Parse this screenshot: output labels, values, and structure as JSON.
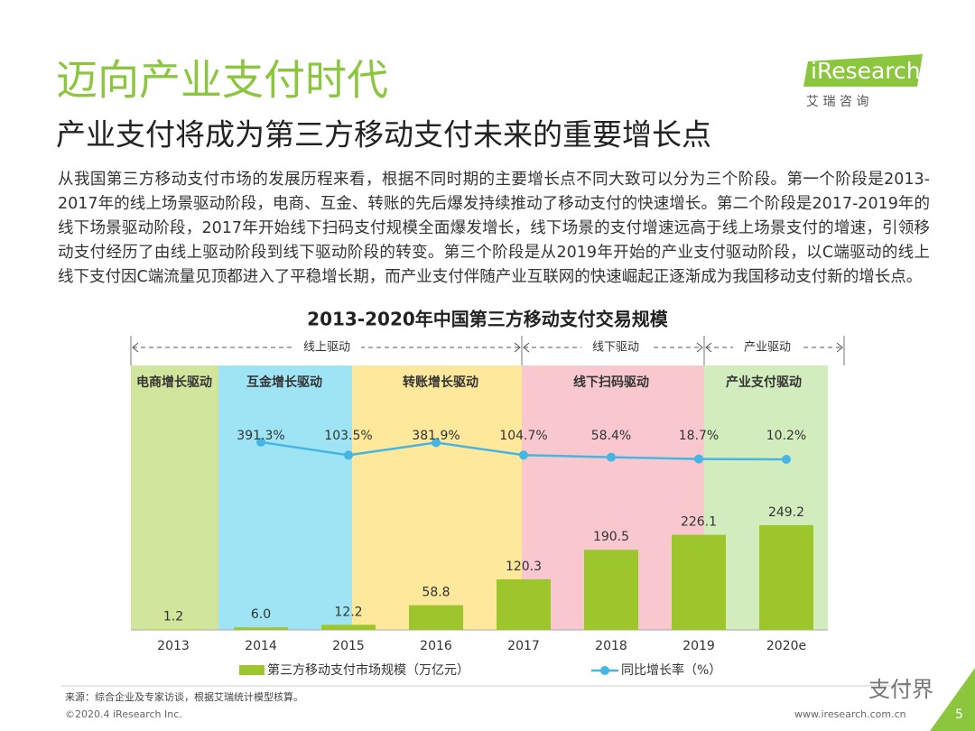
{
  "header": {
    "title": "迈向产业支付时代",
    "subtitle": "产业支付将成为第三方移动支付未来的重要增长点",
    "logo": "iResearch",
    "logo_sub": "艾 瑞 咨 询"
  },
  "body": {
    "paragraph": "从我国第三方移动支付市场的发展历程来看，根据不同时期的主要增长点不同大致可以分为三个阶段。第一个阶段是2013-2017年的线上场景驱动阶段，电商、互金、转账的先后爆发持续推动了移动支付的快速增长。第二个阶段是2017-2019年的线下场景驱动阶段，2017年开始线下扫码支付规模全面爆发增长，线下场景的支付增速远高于线上场景支付的增速，引领移动支付经历了由线上驱动阶段到线下驱动阶段的转变。第三个阶段是从2019年开始的产业支付驱动阶段，以C端驱动的线上线下支付因C端流量见顶都进入了平稳增长期，而产业支付伴随产业互联网的快速崛起正逐渐成为我国移动支付新的增长点。"
  },
  "chart_data": {
    "type": "bar",
    "title": "2013-2020年中国第三方移动支付交易规模",
    "stages": [
      "线上驱动",
      "线下驱动",
      "产业驱动"
    ],
    "phases": [
      "电商增长驱动",
      "互金增长驱动",
      "转账增长驱动",
      "线下扫码驱动",
      "产业支付驱动"
    ],
    "categories": [
      "2013",
      "2014",
      "2015",
      "2016",
      "2017",
      "2018",
      "2019",
      "2020e"
    ],
    "series": [
      {
        "name": "第三方移动支付市场规模（万亿元）",
        "color": "#9cc62b",
        "values": [
          1.2,
          6.0,
          12.2,
          58.8,
          120.3,
          190.5,
          226.1,
          249.2
        ],
        "value_labels": [
          "1.2",
          "6.0",
          "12.2",
          "58.8",
          "120.3",
          "190.5",
          "226.1",
          "249.2"
        ]
      },
      {
        "name": "同比增长率（%）",
        "color": "#45b5e2",
        "values": [
          null,
          391.3,
          103.5,
          381.9,
          104.7,
          58.4,
          18.7,
          10.2
        ],
        "value_labels": [
          null,
          "391.3%",
          "103.5%",
          "381.9%",
          "104.7%",
          "58.4%",
          "18.7%",
          "10.2%"
        ]
      }
    ]
  },
  "source": "来源：综合企业及专家访谈，根据艾瑞统计模型核算。",
  "footer": {
    "copyright": "©2020.4 iResearch Inc.",
    "url": "www.iresearch.com.cn",
    "page": "5",
    "watermark": "支付界"
  }
}
